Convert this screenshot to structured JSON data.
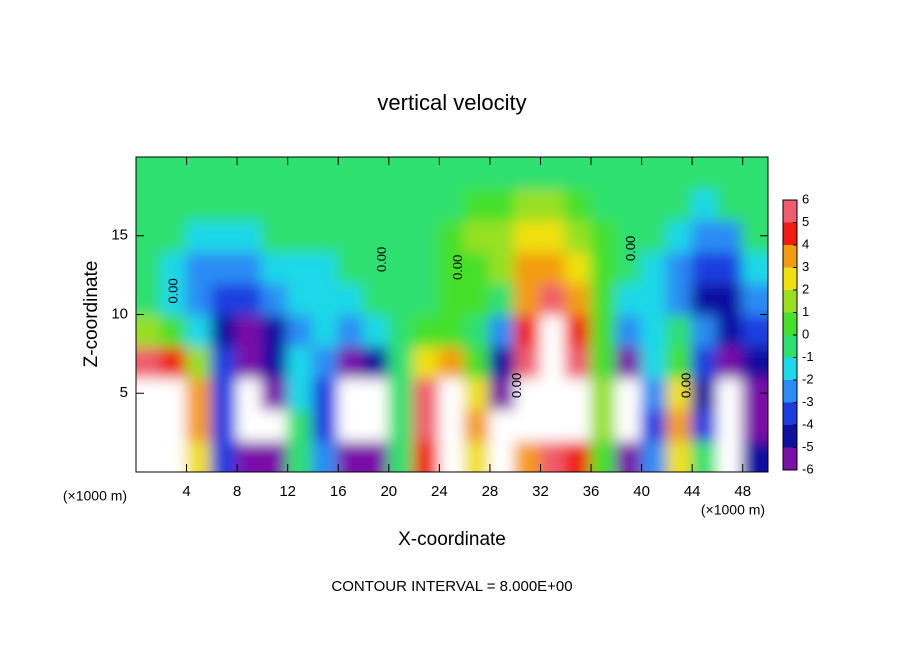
{
  "chart_data": {
    "type": "heatmap",
    "title": "vertical velocity",
    "xlabel": "X-coordinate",
    "ylabel": "Z-coordinate",
    "x_unit_labels": [
      "(×1000 m)",
      "(×1000 m)"
    ],
    "footer": "CONTOUR INTERVAL = 8.000E+00",
    "xlim": [
      0,
      50
    ],
    "ylim": [
      0,
      20
    ],
    "xticks": [
      4,
      8,
      12,
      16,
      20,
      24,
      28,
      32,
      36,
      40,
      44,
      48
    ],
    "yticks": [
      5,
      10,
      15
    ],
    "x": [
      1,
      3,
      5,
      7,
      9,
      11,
      13,
      15,
      17,
      19,
      21,
      23,
      25,
      27,
      29,
      31,
      33,
      35,
      37,
      39,
      41,
      43,
      45,
      47,
      49
    ],
    "y": [
      1,
      3,
      5,
      7,
      9,
      11,
      13,
      15,
      17,
      19
    ],
    "z": [
      [
        7,
        7,
        3,
        -3,
        -5,
        -5,
        0,
        -2,
        -5,
        -6,
        0,
        5,
        7,
        3,
        -7,
        4,
        6,
        5,
        1,
        -5,
        -2,
        3,
        0,
        -7,
        -4
      ],
      [
        8,
        8,
        4,
        -3,
        -7,
        -7,
        0,
        -3,
        -7,
        -7,
        0,
        6,
        8,
        4,
        -7,
        7,
        7,
        7,
        2,
        -7,
        -3,
        4,
        -3,
        -7,
        -5
      ],
      [
        8,
        8,
        4,
        -3,
        -7,
        -6,
        -1,
        -3,
        -7,
        -7,
        0,
        6,
        8,
        3,
        -6,
        7,
        8,
        7,
        2,
        -7,
        -2,
        3,
        -4,
        -7,
        -5
      ],
      [
        6,
        5,
        2,
        -3,
        -6,
        -4,
        -1,
        -2,
        -5,
        -4,
        0,
        3,
        4,
        1,
        -4,
        6,
        8,
        6,
        1,
        -5,
        -1,
        1,
        -3,
        -6,
        -4
      ],
      [
        2,
        1,
        -1,
        -4,
        -5,
        -4,
        -2,
        -1,
        -2,
        -1,
        0,
        1,
        1,
        0,
        -2,
        5,
        8,
        5,
        1,
        -2,
        -1,
        0,
        -2,
        -4,
        -3
      ],
      [
        0,
        -1,
        -2,
        -3,
        -3,
        -2,
        -1,
        -1,
        -1,
        0,
        0,
        0,
        1,
        1,
        0,
        4,
        6,
        4,
        1,
        -1,
        -1,
        -2,
        -4,
        -4,
        -2
      ],
      [
        0,
        -1,
        -2,
        -2,
        -2,
        -1,
        -1,
        -1,
        0,
        0,
        0,
        0,
        1,
        1,
        2,
        4,
        4,
        3,
        1,
        0,
        -1,
        -2,
        -3,
        -3,
        -1
      ],
      [
        0,
        0,
        -1,
        -1,
        -1,
        0,
        0,
        0,
        0,
        0,
        0,
        0,
        1,
        2,
        2,
        3,
        3,
        2,
        1,
        0,
        0,
        -1,
        -2,
        -2,
        0
      ],
      [
        0,
        0,
        0,
        0,
        0,
        0,
        0,
        0,
        0,
        0,
        0,
        0,
        0,
        1,
        1,
        2,
        2,
        1,
        0,
        0,
        0,
        0,
        -1,
        0,
        0
      ],
      [
        0,
        0,
        0,
        0,
        0,
        0,
        0,
        0,
        0,
        0,
        0,
        0,
        0,
        0,
        0,
        0,
        0,
        0,
        0,
        0,
        0,
        0,
        0,
        0,
        0
      ]
    ],
    "colorbar": {
      "ticks": [
        -6,
        -5,
        -4,
        -3,
        -2,
        -1,
        0,
        1,
        2,
        3,
        4,
        5,
        6
      ],
      "colors": [
        "#7a10a8",
        "#1010a0",
        "#1c3ce0",
        "#2a8cf4",
        "#1cd8e8",
        "#2ee070",
        "#44e02c",
        "#98e020",
        "#f0e010",
        "#f49c10",
        "#f01c10",
        "#f05c6c"
      ],
      "out_of_range_color": "#ffffff"
    },
    "contour_labels": [
      {
        "x": 3,
        "y": 11.5,
        "label": "0.00"
      },
      {
        "x": 19.5,
        "y": 13.5,
        "label": "0.00"
      },
      {
        "x": 25.5,
        "y": 13,
        "label": "0.00"
      },
      {
        "x": 30.2,
        "y": 5.5,
        "label": "0.00"
      },
      {
        "x": 39.2,
        "y": 14.2,
        "label": "0.00"
      },
      {
        "x": 43.6,
        "y": 5.5,
        "label": "0.00"
      }
    ]
  }
}
